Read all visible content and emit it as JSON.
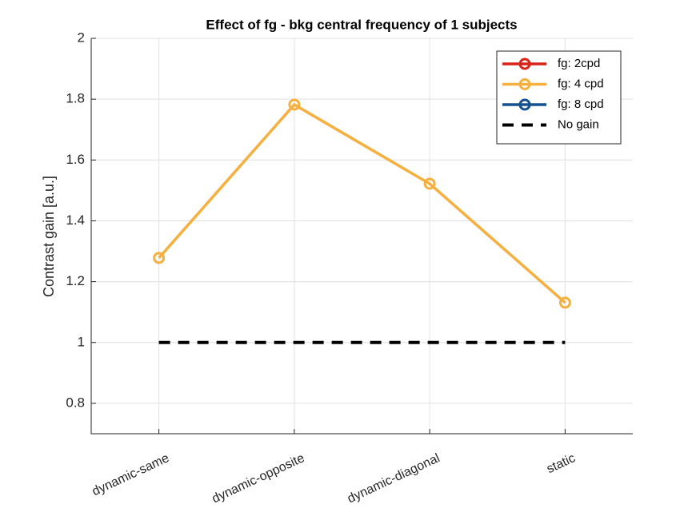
{
  "chart_data": {
    "type": "line",
    "title": "Effect of fg - bkg central frequency of 1 subjects",
    "ylabel": "Contrast gain [a.u.]",
    "categories": [
      "dynamic-same",
      "dynamic-opposite",
      "dynamic-diagonal",
      "static"
    ],
    "series": [
      {
        "name": "fg: 2cpd",
        "color": "#d9241c",
        "values": [
          null,
          null,
          null,
          null
        ],
        "marker": "circle"
      },
      {
        "name": "fg: 4 cpd",
        "color": "#f5b03f",
        "values": [
          1.278,
          1.782,
          1.522,
          1.131
        ],
        "marker": "circle"
      },
      {
        "name": "fg: 8 cpd",
        "color": "#15508f",
        "values": [
          null,
          null,
          null,
          null
        ],
        "marker": "circle"
      },
      {
        "name": "No gain",
        "color": "#000000",
        "values": [
          1,
          1,
          1,
          1
        ],
        "dashed": true
      }
    ],
    "ylim": [
      0.7,
      2
    ],
    "yticks": [
      0.8,
      1,
      1.2,
      1.4,
      1.6,
      1.8,
      2
    ],
    "grid": true,
    "legend": "upper right"
  }
}
